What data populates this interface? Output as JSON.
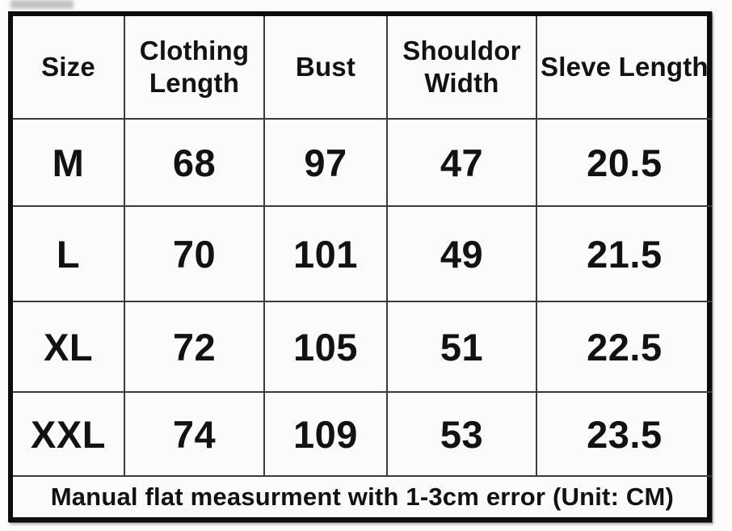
{
  "chart_data": {
    "type": "table",
    "title": "",
    "columns": [
      "Size",
      "Clothing Length",
      "Bust",
      "Shouldor Width",
      "Sleve Length"
    ],
    "rows": [
      [
        "M",
        "68",
        "97",
        "47",
        "20.5"
      ],
      [
        "L",
        "70",
        "101",
        "49",
        "21.5"
      ],
      [
        "XL",
        "72",
        "105",
        "51",
        "22.5"
      ],
      [
        "XXL",
        "74",
        "109",
        "53",
        "23.5"
      ]
    ],
    "footer": "Manual flat measurment with 1-3cm error (Unit: CM)",
    "unit": "CM"
  },
  "colors": {
    "text": "#121212",
    "outer_border": "#0c0c0c",
    "grid_line": "#3b3b3b",
    "background": "#fcfbf9"
  }
}
